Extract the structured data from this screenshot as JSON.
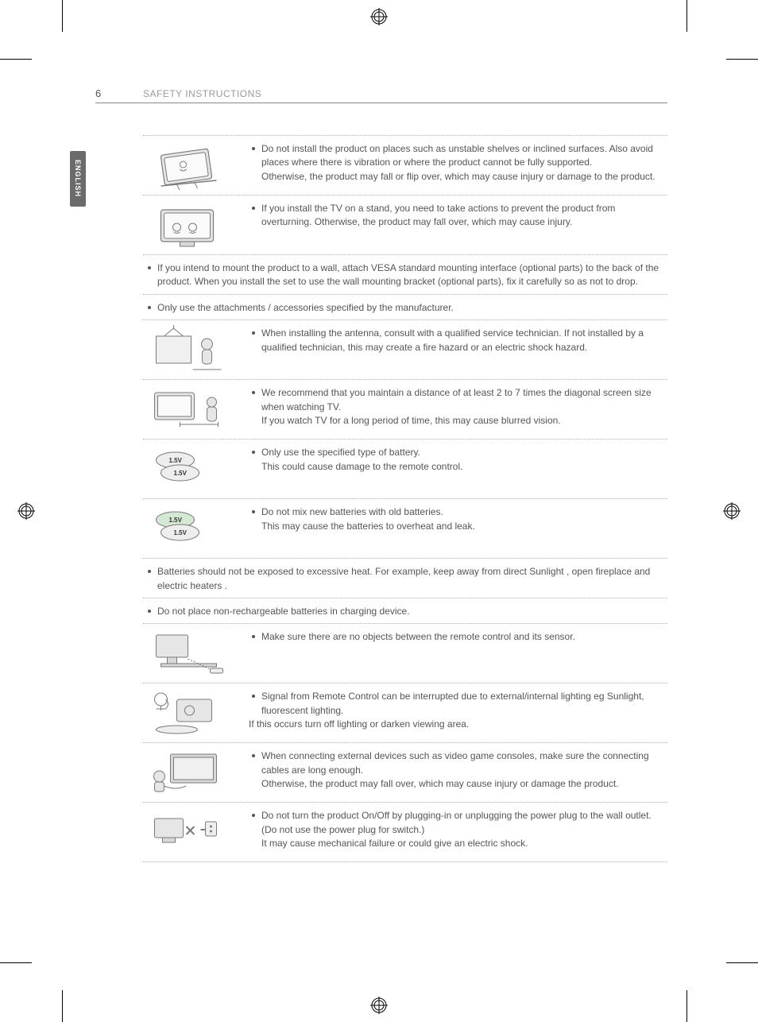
{
  "page_number": "6",
  "section_title": "SAFETY INSTRUCTIONS",
  "language_tab": "ENGLISH",
  "colors": {
    "text": "#555555",
    "muted": "#9a9a9a",
    "divider": "#b0b0b0",
    "header_rule": "#888888",
    "tab_bg": "#6b6b6b",
    "tab_text": "#ffffff",
    "illus_stroke": "#7a7a7a",
    "illus_fill": "#d8d8d8",
    "background": "#ffffff"
  },
  "typography": {
    "body_fontsize_pt": 9,
    "pagenum_fontsize_pt": 10,
    "title_fontsize_pt": 9,
    "tab_fontsize_pt": 7,
    "line_height": 1.45
  },
  "items": [
    {
      "has_image": true,
      "image_kind": "tv-tilting-shelf",
      "lines": [
        "Do not install the product on places such as unstable shelves or inclined surfaces. Also avoid places where there is vibration or where the product cannot be fully supported.",
        "Otherwise, the product may fall or flip over, which may cause injury or damage to the product."
      ]
    },
    {
      "has_image": true,
      "image_kind": "tv-on-stand-kids",
      "lines": [
        "If you install the TV on a stand, you need to take actions to prevent the product from overturning. Otherwise, the product may fall over, which may cause injury."
      ]
    },
    {
      "has_image": false,
      "lines": [
        "If you intend to mount the product to a wall, attach VESA standard mounting interface (optional parts) to the back of the product. When you install the set to use the wall mounting bracket (optional parts), fix it carefully so as not to drop."
      ]
    },
    {
      "has_image": false,
      "lines": [
        "Only use the attachments / accessories specified by the manufacturer."
      ]
    },
    {
      "has_image": true,
      "image_kind": "technician-antenna",
      "lines": [
        "When installing the antenna, consult with a qualified service technician. If not installed by a qualified technician, this may create a fire hazard or an electric shock hazard."
      ]
    },
    {
      "has_image": true,
      "image_kind": "viewing-distance",
      "lines": [
        "We recommend that you maintain a distance of at least 2 to 7 times the diagonal screen size when watching TV.",
        "If you watch TV for a long period of time, this may cause blurred vision."
      ]
    },
    {
      "has_image": true,
      "image_kind": "batteries-same",
      "image_label_a": "1.5V",
      "image_label_b": "1.5V",
      "lines": [
        "Only use the specified type of battery.",
        "This could cause damage to the remote control."
      ]
    },
    {
      "has_image": true,
      "image_kind": "batteries-mixed",
      "image_label_a": "1.5V",
      "image_label_b": "1.5V",
      "lines": [
        "Do not mix new batteries with old batteries.",
        "This may cause the batteries to overheat and leak."
      ]
    },
    {
      "has_image": false,
      "lines": [
        "Batteries should not be exposed to excessive heat. For example, keep away from direct Sunlight , open fireplace and electric heaters ."
      ]
    },
    {
      "has_image": false,
      "lines": [
        "Do not place non-rechargeable batteries in charging device."
      ]
    },
    {
      "has_image": true,
      "image_kind": "remote-sensor-path",
      "lines": [
        "Make sure there are no objects between the remote control and its sensor."
      ]
    },
    {
      "has_image": true,
      "image_kind": "lighting-interference",
      "lines": [
        "Signal from Remote Control can be interrupted due to external/internal lighting eg Sunlight, fluorescent lighting.",
        "If this occurs turn off lighting or darken viewing area."
      ],
      "second_line_no_bullet": true
    },
    {
      "has_image": true,
      "image_kind": "game-console-cables",
      "lines": [
        "When connecting external devices such as video game consoles, make sure the connecting cables are long enough.",
        "Otherwise, the product may fall over, which may cause injury or damage the product."
      ]
    },
    {
      "has_image": true,
      "image_kind": "power-plug-x",
      "lines": [
        "Do not turn the product On/Off by plugging-in or unplugging the power plug to the wall outlet. (Do not use the power plug for switch.)",
        "It may cause mechanical failure or could give an electric shock."
      ]
    }
  ]
}
